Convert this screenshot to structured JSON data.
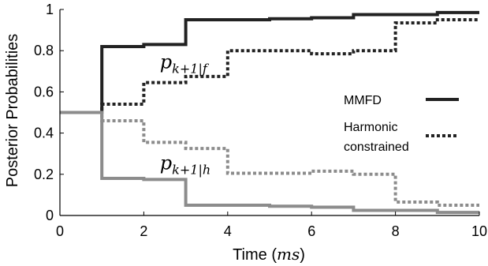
{
  "chart_data": {
    "type": "line",
    "title": "",
    "xlabel": "Time",
    "xlabel_unit": "ms",
    "ylabel": "Posterior Probabilities",
    "xlim": [
      0,
      10
    ],
    "ylim": [
      0,
      1
    ],
    "x_ticks": [
      0,
      2,
      4,
      6,
      8,
      10
    ],
    "y_ticks": [
      0,
      0.2,
      0.4,
      0.6,
      0.8,
      1
    ],
    "x_tick_labels": [
      "0",
      "2",
      "4",
      "6",
      "8",
      "10"
    ],
    "y_tick_labels": [
      "0",
      "0.2",
      "0.4",
      "0.6",
      "0.8",
      "1"
    ],
    "grid": false,
    "legend_position": "right",
    "legend": [
      {
        "label_lines": [
          "MMFD"
        ],
        "style": "solid"
      },
      {
        "label_lines": [
          "Harmonic",
          "constrained"
        ],
        "style": "dotted"
      }
    ],
    "step_x": [
      0,
      1,
      2,
      3,
      4,
      5,
      6,
      7,
      8,
      9,
      10
    ],
    "series": [
      {
        "group": "MMFD",
        "curve": "f",
        "style": "solid",
        "color": "#222222",
        "values": [
          0.5,
          0.82,
          0.83,
          0.95,
          0.95,
          0.955,
          0.96,
          0.975,
          0.975,
          0.985,
          0.985
        ]
      },
      {
        "group": "Harmonic constrained",
        "curve": "f",
        "style": "dotted",
        "color": "#222222",
        "values": [
          0.5,
          0.54,
          0.645,
          0.675,
          0.8,
          0.8,
          0.785,
          0.8,
          0.935,
          0.95,
          0.95
        ]
      },
      {
        "group": "MMFD",
        "curve": "h",
        "style": "solid",
        "color": "#8c8c8c",
        "values": [
          0.5,
          0.18,
          0.175,
          0.05,
          0.05,
          0.045,
          0.04,
          0.025,
          0.025,
          0.015,
          0.015
        ]
      },
      {
        "group": "Harmonic constrained",
        "curve": "h",
        "style": "dotted",
        "color": "#8c8c8c",
        "values": [
          0.5,
          0.46,
          0.355,
          0.325,
          0.205,
          0.205,
          0.215,
          0.2,
          0.065,
          0.05,
          0.05
        ]
      }
    ],
    "annotations": [
      {
        "name": "f",
        "base": "p",
        "subscript": "k+1|f",
        "x": 4,
        "y": 0.745
      },
      {
        "name": "h",
        "base": "p",
        "subscript": "k+1|h",
        "x": 4,
        "y": 0.255
      }
    ]
  }
}
